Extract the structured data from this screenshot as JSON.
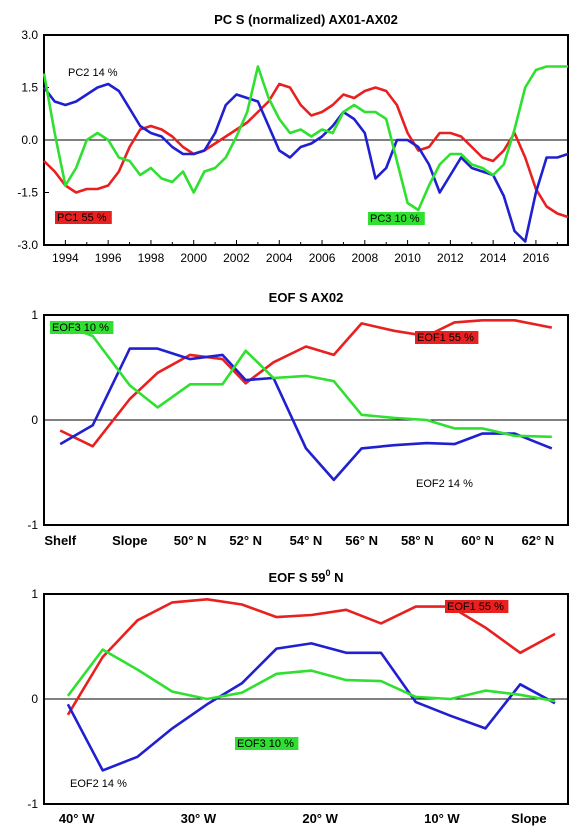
{
  "colors": {
    "red": "#e82020",
    "blue": "#2020d0",
    "green": "#30e030",
    "axis": "#000000"
  },
  "chart_data": [
    {
      "type": "line",
      "title": "PC S (normalized) AX01-AX02",
      "ylim": [
        -3.0,
        3.0
      ],
      "yticks": [
        "3.0",
        "1.5",
        "0.0",
        "-1.5",
        "-3.0"
      ],
      "ytick_values": [
        3.0,
        1.5,
        0.0,
        -1.5,
        -3.0
      ],
      "xlim": [
        1993.0,
        2017.5
      ],
      "xticks": [
        "1994",
        "1996",
        "1998",
        "2000",
        "2002",
        "2004",
        "2006",
        "2008",
        "2010",
        "2012",
        "2014",
        "2016"
      ],
      "xtick_values": [
        1994,
        1996,
        1998,
        2000,
        2002,
        2004,
        2006,
        2008,
        2010,
        2012,
        2014,
        2016
      ],
      "series": [
        {
          "name": "PC1 55 %",
          "color": "red",
          "x": [
            1993.0,
            1993.5,
            1994.0,
            1994.5,
            1995.0,
            1995.5,
            1996.0,
            1996.5,
            1997.0,
            1997.5,
            1998.0,
            1998.5,
            1999.0,
            1999.5,
            2000.0,
            2000.5,
            2001.0,
            2001.5,
            2002.0,
            2002.5,
            2003.0,
            2003.5,
            2004.0,
            2004.5,
            2005.0,
            2005.5,
            2006.0,
            2006.5,
            2007.0,
            2007.5,
            2008.0,
            2008.5,
            2009.0,
            2009.5,
            2010.0,
            2010.5,
            2011.0,
            2011.5,
            2012.0,
            2012.5,
            2013.0,
            2013.5,
            2014.0,
            2014.5,
            2015.0,
            2015.5,
            2016.0,
            2016.5,
            2017.0,
            2017.5
          ],
          "y": [
            -0.6,
            -0.9,
            -1.3,
            -1.5,
            -1.4,
            -1.4,
            -1.3,
            -0.9,
            -0.2,
            0.3,
            0.4,
            0.3,
            0.1,
            -0.2,
            -0.4,
            -0.3,
            -0.1,
            0.1,
            0.3,
            0.5,
            0.8,
            1.1,
            1.6,
            1.5,
            1.0,
            0.7,
            0.8,
            1.0,
            1.3,
            1.2,
            1.4,
            1.5,
            1.4,
            1.0,
            0.2,
            -0.3,
            -0.2,
            0.2,
            0.2,
            0.1,
            -0.2,
            -0.5,
            -0.6,
            -0.3,
            0.2,
            -0.5,
            -1.4,
            -1.9,
            -2.1,
            -2.2
          ]
        },
        {
          "name": "PC2 14 %",
          "color": "blue",
          "x": [
            1993.0,
            1993.5,
            1994.0,
            1994.5,
            1995.0,
            1995.5,
            1996.0,
            1996.5,
            1997.0,
            1997.5,
            1998.0,
            1998.5,
            1999.0,
            1999.5,
            2000.0,
            2000.5,
            2001.0,
            2001.5,
            2002.0,
            2002.5,
            2003.0,
            2003.5,
            2004.0,
            2004.5,
            2005.0,
            2005.5,
            2006.0,
            2006.5,
            2007.0,
            2007.5,
            2008.0,
            2008.5,
            2009.0,
            2009.5,
            2010.0,
            2010.5,
            2011.0,
            2011.5,
            2012.0,
            2012.5,
            2013.0,
            2013.5,
            2014.0,
            2014.5,
            2015.0,
            2015.5,
            2016.0,
            2016.5,
            2017.0,
            2017.5
          ],
          "y": [
            1.5,
            1.1,
            1.0,
            1.1,
            1.3,
            1.5,
            1.6,
            1.4,
            0.9,
            0.4,
            0.2,
            0.1,
            -0.2,
            -0.4,
            -0.4,
            -0.3,
            0.2,
            1.0,
            1.3,
            1.2,
            1.1,
            0.4,
            -0.3,
            -0.5,
            -0.2,
            -0.1,
            0.1,
            0.4,
            0.8,
            0.6,
            0.2,
            -1.1,
            -0.8,
            0.0,
            0.0,
            -0.2,
            -0.7,
            -1.5,
            -1.0,
            -0.5,
            -0.8,
            -0.9,
            -1.0,
            -1.6,
            -2.6,
            -2.9,
            -1.5,
            -0.5,
            -0.5,
            -0.4
          ]
        },
        {
          "name": "PC3 10 %",
          "color": "green",
          "x": [
            1993.0,
            1993.5,
            1994.0,
            1994.5,
            1995.0,
            1995.5,
            1996.0,
            1996.5,
            1997.0,
            1997.5,
            1998.0,
            1998.5,
            1999.0,
            1999.5,
            2000.0,
            2000.5,
            2001.0,
            2001.5,
            2002.0,
            2002.5,
            2003.0,
            2003.5,
            2004.0,
            2004.5,
            2005.0,
            2005.5,
            2006.0,
            2006.5,
            2007.0,
            2007.5,
            2008.0,
            2008.5,
            2009.0,
            2009.5,
            2010.0,
            2010.5,
            2011.0,
            2011.5,
            2012.0,
            2012.5,
            2013.0,
            2013.5,
            2014.0,
            2014.5,
            2015.0,
            2015.5,
            2016.0,
            2016.5,
            2017.0,
            2017.5
          ],
          "y": [
            1.9,
            0.2,
            -1.3,
            -0.8,
            0.0,
            0.2,
            0.0,
            -0.5,
            -0.6,
            -1.0,
            -0.8,
            -1.1,
            -1.2,
            -0.9,
            -1.5,
            -0.9,
            -0.8,
            -0.5,
            0.1,
            0.8,
            2.1,
            1.2,
            0.6,
            0.2,
            0.3,
            0.1,
            0.3,
            0.2,
            0.8,
            1.0,
            0.8,
            0.8,
            0.6,
            -0.6,
            -1.8,
            -2.0,
            -1.3,
            -0.7,
            -0.4,
            -0.4,
            -0.7,
            -0.8,
            -1.0,
            -0.7,
            0.3,
            1.5,
            2.0,
            2.1,
            2.1,
            2.1
          ]
        }
      ],
      "series_labels": [
        {
          "text": "PC2 14 %",
          "color": "none"
        },
        {
          "text": "PC1 55 %",
          "color": "red"
        },
        {
          "text": "PC3 10 %",
          "color": "green"
        }
      ]
    },
    {
      "type": "line",
      "title": "EOF S AX02",
      "ylim": [
        -1,
        1
      ],
      "yticks": [
        "1",
        "0",
        "-1"
      ],
      "ytick_values": [
        1,
        0,
        -1
      ],
      "xticks": [
        "Shelf",
        "Slope",
        "50° N",
        "52° N",
        "54° N",
        "56° N",
        "58° N",
        "60° N",
        "62° N"
      ],
      "xtick_positions": [
        0,
        1.5,
        2.8,
        4.0,
        5.3,
        6.5,
        7.7,
        9.0,
        10.3
      ],
      "series": [
        {
          "name": "EOF1 55 %",
          "color": "red",
          "x": [
            0,
            0.7,
            1.5,
            2.1,
            2.8,
            3.5,
            4.0,
            4.6,
            5.3,
            5.9,
            6.5,
            7.2,
            7.9,
            8.5,
            9.1,
            9.8,
            10.6
          ],
          "y": [
            -0.1,
            -0.25,
            0.2,
            0.45,
            0.62,
            0.58,
            0.35,
            0.55,
            0.7,
            0.62,
            0.92,
            0.85,
            0.8,
            0.93,
            0.95,
            0.95,
            0.88
          ]
        },
        {
          "name": "EOF2 14 %",
          "color": "blue",
          "x": [
            0,
            0.7,
            1.5,
            2.1,
            2.8,
            3.5,
            4.0,
            4.6,
            5.3,
            5.9,
            6.5,
            7.2,
            7.9,
            8.5,
            9.1,
            9.8,
            10.6
          ],
          "y": [
            -0.23,
            -0.05,
            0.68,
            0.68,
            0.58,
            0.62,
            0.38,
            0.4,
            -0.27,
            -0.57,
            -0.27,
            -0.24,
            -0.22,
            -0.23,
            -0.13,
            -0.13,
            -0.27
          ]
        },
        {
          "name": "EOF3 10 %",
          "color": "green",
          "x": [
            0,
            0.7,
            1.5,
            2.1,
            2.8,
            3.5,
            4.0,
            4.6,
            5.3,
            5.9,
            6.5,
            7.2,
            7.9,
            8.5,
            9.1,
            9.8,
            10.6
          ],
          "y": [
            0.92,
            0.8,
            0.33,
            0.12,
            0.34,
            0.34,
            0.66,
            0.4,
            0.42,
            0.37,
            0.05,
            0.02,
            0.0,
            -0.08,
            -0.08,
            -0.15,
            -0.16
          ]
        }
      ],
      "series_labels": [
        {
          "text": "EOF3 10 %",
          "color": "green"
        },
        {
          "text": "EOF1 55 %",
          "color": "red"
        },
        {
          "text": "EOF2 14 %",
          "color": "none"
        }
      ]
    },
    {
      "type": "line",
      "title_main": "EOF S 59",
      "title_sup": "0",
      "title_tail": " N",
      "ylim": [
        -1,
        1
      ],
      "yticks": [
        "1",
        "0",
        "-1"
      ],
      "ytick_values": [
        1,
        0,
        -1
      ],
      "xticks": [
        "40° W",
        "30° W",
        "20° W",
        "10° W",
        "Slope"
      ],
      "xtick_positions": [
        0.2,
        3.0,
        5.8,
        8.6,
        10.6
      ],
      "series": [
        {
          "name": "EOF1 55 %",
          "color": "red",
          "x": [
            0,
            0.8,
            1.6,
            2.4,
            3.2,
            4.0,
            4.8,
            5.6,
            6.4,
            7.2,
            8.0,
            8.8,
            9.6,
            10.4,
            11.2
          ],
          "y": [
            -0.15,
            0.4,
            0.75,
            0.92,
            0.95,
            0.9,
            0.78,
            0.8,
            0.85,
            0.72,
            0.88,
            0.88,
            0.68,
            0.44,
            0.62
          ]
        },
        {
          "name": "EOF2 14 %",
          "color": "blue",
          "x": [
            0,
            0.8,
            1.6,
            2.4,
            3.2,
            4.0,
            4.8,
            5.6,
            6.4,
            7.2,
            8.0,
            8.8,
            9.6,
            10.4,
            11.2
          ],
          "y": [
            -0.05,
            -0.68,
            -0.55,
            -0.28,
            -0.05,
            0.15,
            0.48,
            0.53,
            0.44,
            0.44,
            -0.03,
            -0.16,
            -0.28,
            0.14,
            -0.04
          ]
        },
        {
          "name": "EOF3 10 %",
          "color": "green",
          "x": [
            0,
            0.8,
            1.6,
            2.4,
            3.2,
            4.0,
            4.8,
            5.6,
            6.4,
            7.2,
            8.0,
            8.8,
            9.6,
            10.4,
            11.2
          ],
          "y": [
            0.03,
            0.47,
            0.28,
            0.07,
            0.0,
            0.06,
            0.24,
            0.27,
            0.18,
            0.17,
            0.02,
            0.0,
            0.08,
            0.04,
            -0.02
          ]
        }
      ],
      "series_labels": [
        {
          "text": "EOF1 55 %",
          "color": "red"
        },
        {
          "text": "EOF3 10 %",
          "color": "green"
        },
        {
          "text": "EOF2 14 %",
          "color": "none"
        }
      ]
    }
  ]
}
